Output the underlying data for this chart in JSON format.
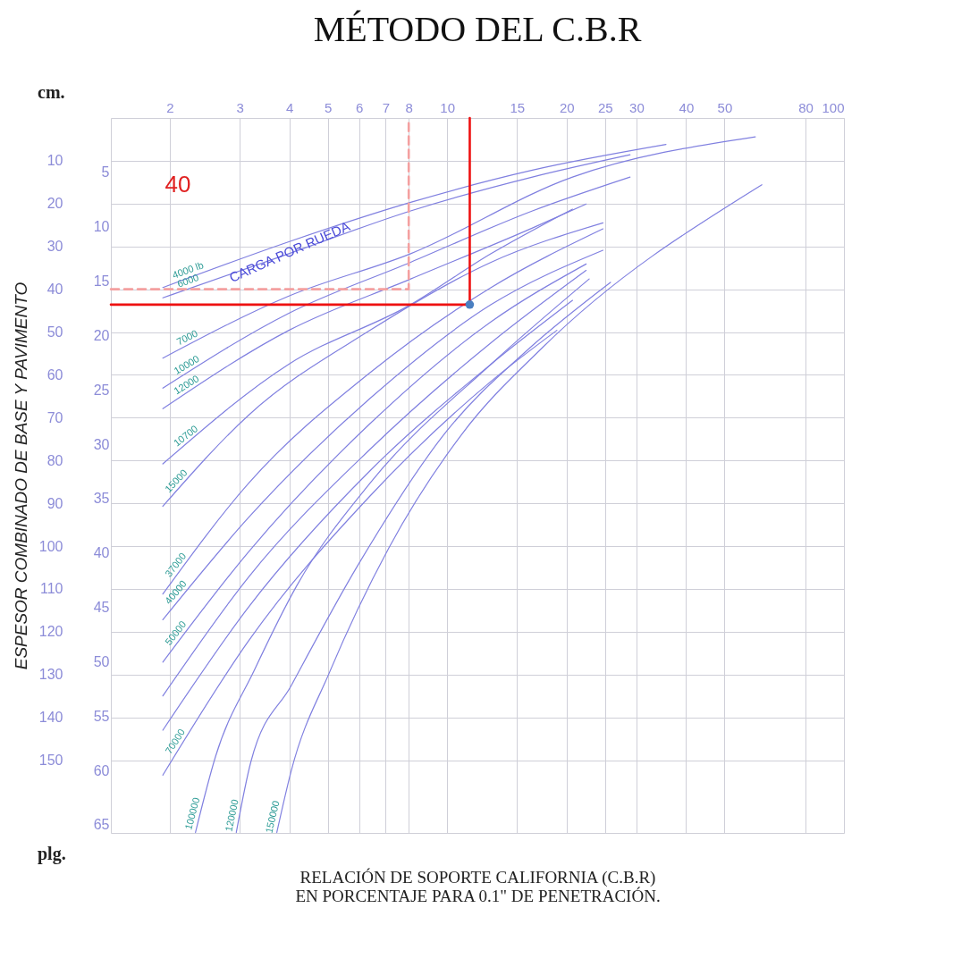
{
  "chart_data": {
    "type": "line",
    "title": "MÉTODO DEL C.B.R",
    "xlabel": "RELACIÓN DE SOPORTE CALIFORNIA (C.B.R)\nEN PORCENTAJE PARA 0.1\" DE PENETRACIÓN.",
    "ylabel": "ESPESOR COMBINADO DE BASE Y PAVIMENTO",
    "annotations": [
      "CARGA POR RUEDA",
      "40",
      "cm.",
      "plg."
    ],
    "log": "x",
    "xlim": [
      1.42,
      100
    ],
    "xticks": [
      2,
      3,
      4,
      5,
      6,
      7,
      8,
      10,
      15,
      20,
      25,
      30,
      40,
      50,
      80,
      100
    ],
    "ylim": [
      167,
      0
    ],
    "yticks": [
      10,
      20,
      30,
      40,
      50,
      60,
      70,
      80,
      90,
      100,
      110,
      120,
      130,
      140,
      150
    ],
    "y2lim": [
      65.75,
      0
    ],
    "y2ticks": [
      5,
      10,
      15,
      20,
      25,
      30,
      35,
      40,
      45,
      50,
      55,
      60,
      65
    ],
    "grid": true,
    "series": [
      {
        "name": "4000 lb",
        "color": "#8080e0",
        "x": [
          1.92,
          3.99,
          8.09,
          16.4,
          35.6
        ],
        "values": [
          39.6,
          28.9,
          19.7,
          12.2,
          6.2
        ]
      },
      {
        "name": "6000",
        "color": "#8080e0",
        "x": [
          1.92,
          3.99,
          8.09,
          16.4,
          28.9
        ],
        "values": [
          42.0,
          31.7,
          21.7,
          13.8,
          8.6
        ]
      },
      {
        "name": "7000",
        "color": "#8080e0",
        "x": [
          1.92,
          3.99,
          8.09,
          20.7,
          59.8
        ],
        "values": [
          56.1,
          41.6,
          31.7,
          13.8,
          4.4
        ]
      },
      {
        "name": "10000",
        "color": "#8080e0",
        "x": [
          1.92,
          3.99,
          8.09,
          16.4,
          28.9
        ],
        "values": [
          63.1,
          45.6,
          33.7,
          21.7,
          13.8
        ]
      },
      {
        "name": "12000",
        "color": "#8080e0",
        "x": [
          1.92,
          3.99,
          8.09,
          16.4,
          22.4
        ],
        "values": [
          67.9,
          49.6,
          37.6,
          25.7,
          20.1
        ]
      },
      {
        "name": "10700",
        "color": "#8080e0",
        "x": [
          1.92,
          3.99,
          8.09,
          12.9,
          20.7
        ],
        "values": [
          80.8,
          57.5,
          43.6,
          31.7,
          21.3
        ]
      },
      {
        "name": "15000",
        "color": "#8080e0",
        "x": [
          1.92,
          3.16,
          6.39,
          12.9,
          24.7
        ],
        "values": [
          90.7,
          69.4,
          49.6,
          33.7,
          24.5
        ]
      },
      {
        "name": "37000",
        "color": "#8080e0",
        "x": [
          1.92,
          3.16,
          6.39,
          12.9,
          24.7
        ],
        "values": [
          111.2,
          85.3,
          59.5,
          39.6,
          25.9
        ]
      },
      {
        "name": "40000",
        "color": "#8080e0",
        "x": [
          1.92,
          3.16,
          6.39,
          12.9,
          24.7
        ],
        "values": [
          117.2,
          93.3,
          65.5,
          43.6,
          30.9
        ]
      },
      {
        "name": "50000",
        "color": "#8080e0",
        "x": [
          1.92,
          3.16,
          6.39,
          12.9,
          22.4
        ],
        "values": [
          127.1,
          101.3,
          71.4,
          47.6,
          34.1
        ]
      },
      {
        "color": "#8080e0",
        "x": [
          1.92,
          3.16,
          6.39,
          12.9,
          22.4
        ],
        "values": [
          135.0,
          107.2,
          77.4,
          52.5,
          35.6
        ]
      },
      {
        "color": "#8080e0",
        "x": [
          1.92,
          3.16,
          6.39,
          12.9,
          20.7
        ],
        "values": [
          143.0,
          114.2,
          82.4,
          57.5,
          42.6
        ]
      },
      {
        "name": "70000",
        "color": "#8080e0",
        "x": [
          1.92,
          3.16,
          6.39,
          12.9,
          18.9
        ],
        "values": [
          153.5,
          122.1,
          88.3,
          61.5,
          49.6
        ]
      },
      {
        "name": "100000",
        "color": "#8080e0",
        "x": [
          2.32,
          2.61,
          3.26,
          4.18,
          6.39,
          12.9,
          22.8
        ],
        "values": [
          166.9,
          149.0,
          129.1,
          109.2,
          85.3,
          57.5,
          37.6
        ]
      },
      {
        "name": "120000",
        "color": "#8080e0",
        "x": [
          2.94,
          3.2,
          4.05,
          5.98,
          10.0,
          16.2,
          25.8
        ],
        "values": [
          166.9,
          150.4,
          132.5,
          104.2,
          73.0,
          53.6,
          38.4
        ]
      },
      {
        "name": "150000",
        "color": "#8080e0",
        "x": [
          3.72,
          4.05,
          5.05,
          7.12,
          10.9,
          17.4,
          62.1
        ],
        "values": [
          166.9,
          152.3,
          129.5,
          100.5,
          73.8,
          53.6,
          15.6
        ]
      },
      {
        "color": "#f4a0a0",
        "line_style": "dashed",
        "x": [
          1.42,
          8,
          8
        ],
        "values": [
          40,
          40,
          0
        ]
      },
      {
        "color": "#ee1111",
        "x": [
          1.42,
          11.4,
          11.4
        ],
        "values": [
          43.6,
          43.6,
          0
        ]
      },
      {
        "type": "scatter",
        "color": "#4a7fc1",
        "x": [
          11.4
        ],
        "values": [
          43.6
        ]
      }
    ]
  }
}
